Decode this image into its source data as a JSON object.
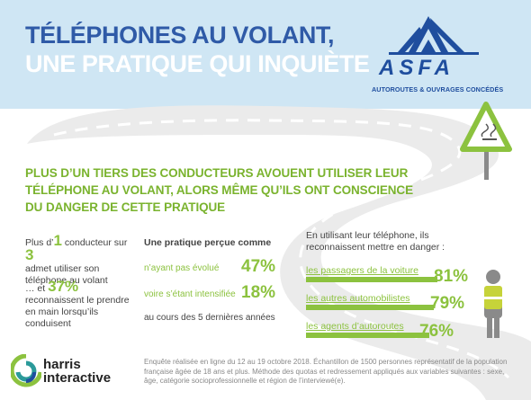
{
  "header": {
    "title_line1": "TÉLÉPHONES AU VOLANT,",
    "title_line2": "UNE PRATIQUE QUI INQUIÈTE",
    "bg_color": "#cfe6f4"
  },
  "logo": {
    "name": "ASFA",
    "tagline": "AUTOROUTES & OUVRAGES CONCÉDÉS",
    "color": "#1f4e9e"
  },
  "headline": "PLUS D’UN TIERS DES CONDUCTEURS AVOUENT UTILISER LEUR TÉLÉPHONE AU VOLANT, ALORS MÊME QU’ILS ONT CONSCIENCE DU DANGER DE CETTE PRATIQUE",
  "left_stats": {
    "stat1_prefix": "Plus d’",
    "stat1_number": "1",
    "stat1_middle": " conducteur sur ",
    "stat1_number2": "3",
    "stat1_rest": "admet utiliser son téléphone au volant",
    "stat2_prefix": "… et ",
    "stat2_number": "37%",
    "stat2_rest": " reconnaissent le prendre en main lorsqu’ils conduisent"
  },
  "middle": {
    "title": "Une pratique perçue comme",
    "items": [
      {
        "label": "n’ayant pas évolué",
        "value": "47%"
      },
      {
        "label": "voire s’étant intensifiée",
        "value": "18%"
      }
    ],
    "footer": "au cours des 5 dernières années"
  },
  "right": {
    "title": "En utilisant leur téléphone, ils reconnaissent mettre en danger :",
    "items": [
      {
        "label": "les passagers de la voiture",
        "value": "81%",
        "fraction": 0.81
      },
      {
        "label": "les autres automobilistes",
        "value": "79%",
        "fraction": 0.79
      },
      {
        "label": "les agents d’autoroutes",
        "value": "76%",
        "fraction": 0.76
      }
    ]
  },
  "footer": {
    "brand_line1": "harris",
    "brand_line2": "interactive",
    "note": "Enquête réalisée en ligne du 12 au 19 octobre 2018. Échantillon de 1500 personnes représentatif de la population française âgée de 18 ans et plus. Méthode des quotas et redressement appliqués aux variables suivantes : sexe, âge, catégorie socioprofessionnelle et région de l’interviewé(e)."
  },
  "colors": {
    "accent_green": "#8cc23f",
    "title_blue": "#2f5aa7",
    "road_gray": "#ebebeb",
    "road_line": "#ffffff"
  }
}
